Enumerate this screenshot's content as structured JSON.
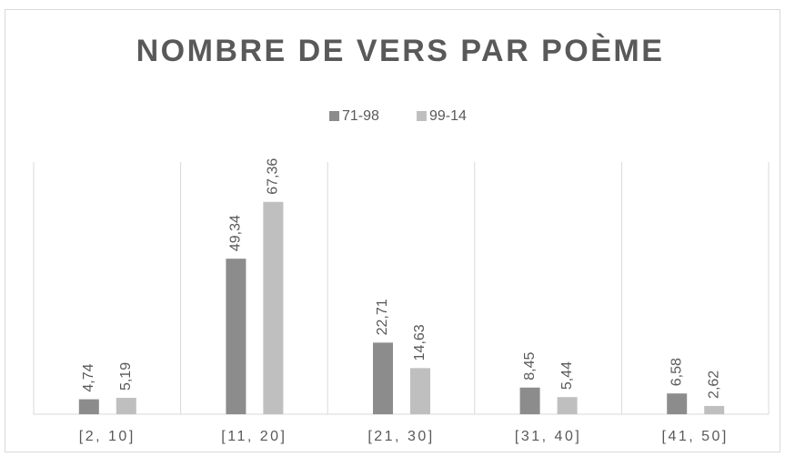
{
  "chart_data": {
    "type": "bar",
    "title": "NOMBRE DE VERS PAR POÈME",
    "categories": [
      "[2, 10]",
      "[11, 20]",
      "[21, 30]",
      "[31, 40]",
      "[41, 50]"
    ],
    "series": [
      {
        "name": "71-98",
        "color": "#8c8c8c",
        "values": [
          4.74,
          49.34,
          22.71,
          8.45,
          6.58
        ],
        "value_labels": [
          "4,74",
          "49,34",
          "22,71",
          "8,45",
          "6,58"
        ]
      },
      {
        "name": "99-14",
        "color": "#bfbfbf",
        "values": [
          5.19,
          67.36,
          14.63,
          5.44,
          2.62
        ],
        "value_labels": [
          "5,19",
          "67,36",
          "14,63",
          "5,44",
          "2,62"
        ]
      }
    ],
    "ylim": [
      0,
      80
    ],
    "legend": "top"
  }
}
